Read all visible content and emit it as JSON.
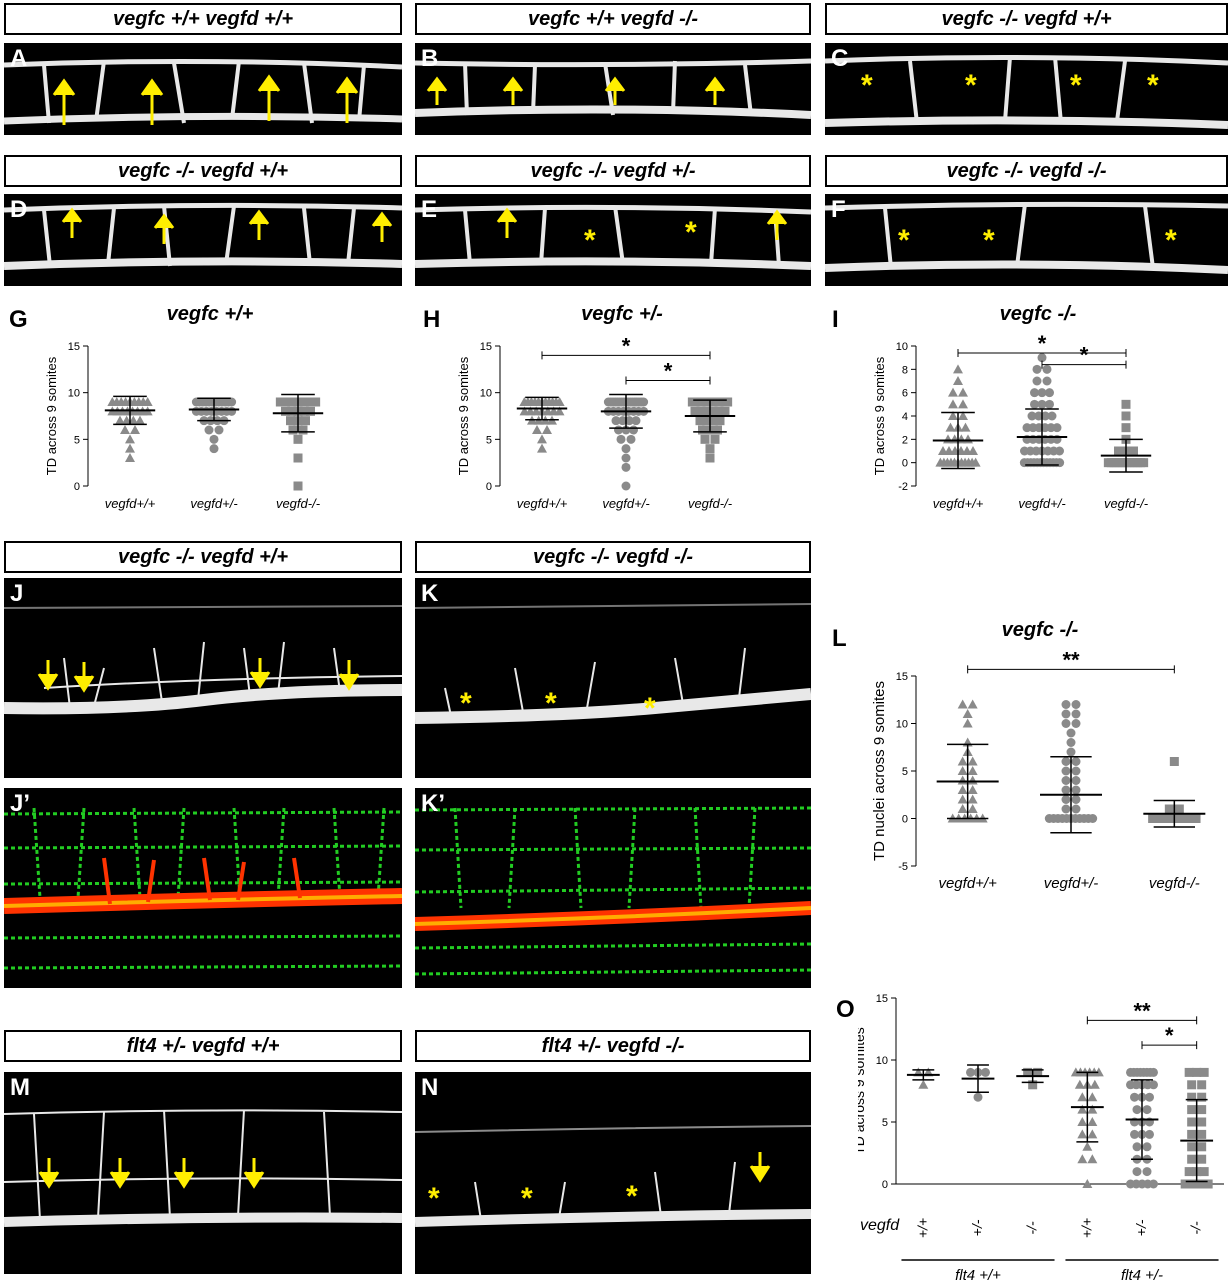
{
  "row1_headers": [
    "vegfc +/+ vegfd +/+",
    "vegfc +/+ vegfd -/-",
    "vegfc -/-  vegfd +/+"
  ],
  "row2_headers": [
    "vegfc -/- vegfd +/+",
    "vegfc -/- vegfd +/-",
    "vegfc -/-  vegfd -/-"
  ],
  "row3_headers": [
    "vegfc -/- vegfd +/+",
    "vegfc -/-  vegfd -/-"
  ],
  "row4_headers": [
    "flt4 +/- vegfd +/+",
    "flt4 +/- vegfd -/-"
  ],
  "panel_letters": {
    "A": "A",
    "B": "B",
    "C": "C",
    "D": "D",
    "E": "E",
    "F": "F",
    "G": "G",
    "H": "H",
    "I": "I",
    "J": "J",
    "Jp": "J’",
    "K": "K",
    "Kp": "K’",
    "L": "L",
    "M": "M",
    "N": "N",
    "O": "O"
  },
  "marker_colors": {
    "arrow": "#ffee00",
    "asterisk": "#ffee00",
    "vessel_green": "#22cc22",
    "vessel_red": "#ff3300"
  },
  "chart_data": [
    {
      "id": "G",
      "type": "scatter",
      "title": "vegfc +/+",
      "ylabel": "TD across 9 somites",
      "ylim": [
        0,
        15
      ],
      "yticks": [
        0,
        5,
        10,
        15
      ],
      "categories": [
        "vegfd+/+",
        "vegfd+/-",
        "vegfd-/-"
      ],
      "markers": [
        "triangle",
        "circle",
        "square"
      ],
      "series": [
        {
          "mean": 8.1,
          "sd": 1.5,
          "values": [
            9,
            9,
            9,
            9,
            9,
            9,
            9,
            9,
            9,
            8,
            8,
            8,
            8,
            8,
            8,
            8,
            8,
            7,
            7,
            7,
            7,
            6,
            6,
            5,
            4,
            3
          ]
        },
        {
          "mean": 8.2,
          "sd": 1.2,
          "values": [
            9,
            9,
            9,
            9,
            9,
            9,
            9,
            9,
            9,
            9,
            9,
            9,
            8,
            8,
            8,
            8,
            8,
            8,
            8,
            8,
            7,
            7,
            7,
            7,
            6,
            6,
            5,
            4
          ]
        },
        {
          "mean": 7.8,
          "sd": 2.0,
          "values": [
            9,
            9,
            9,
            9,
            9,
            9,
            9,
            9,
            9,
            9,
            8,
            8,
            8,
            8,
            8,
            7,
            7,
            7,
            6,
            6,
            5,
            3,
            0
          ]
        }
      ],
      "significance": []
    },
    {
      "id": "H",
      "type": "scatter",
      "title": "vegfc +/-",
      "ylabel": "TD across 9 somites",
      "ylim": [
        0,
        15
      ],
      "yticks": [
        0,
        5,
        10,
        15
      ],
      "categories": [
        "vegfd+/+",
        "vegfd+/-",
        "vegfd-/-"
      ],
      "markers": [
        "triangle",
        "circle",
        "square"
      ],
      "series": [
        {
          "mean": 8.3,
          "sd": 1.2,
          "values": [
            9,
            9,
            9,
            9,
            9,
            9,
            9,
            9,
            9,
            9,
            9,
            8,
            8,
            8,
            8,
            8,
            8,
            8,
            7,
            7,
            7,
            7,
            6,
            6,
            5,
            4
          ]
        },
        {
          "mean": 8.0,
          "sd": 1.8,
          "values": [
            9,
            9,
            9,
            9,
            9,
            9,
            9,
            9,
            9,
            9,
            9,
            9,
            9,
            9,
            9,
            9,
            9,
            9,
            9,
            9,
            8,
            8,
            8,
            8,
            8,
            8,
            8,
            8,
            7,
            7,
            7,
            7,
            6,
            6,
            6,
            5,
            5,
            4,
            3,
            2,
            0
          ]
        },
        {
          "mean": 7.5,
          "sd": 1.7,
          "values": [
            9,
            9,
            9,
            9,
            9,
            9,
            9,
            9,
            9,
            9,
            9,
            9,
            8,
            8,
            8,
            8,
            8,
            8,
            7,
            7,
            7,
            7,
            6,
            6,
            6,
            5,
            5,
            4,
            3
          ]
        }
      ],
      "significance": [
        {
          "from": 0,
          "to": 2,
          "y": 14,
          "label": "*"
        },
        {
          "from": 1,
          "to": 2,
          "y": 11.3,
          "label": "*"
        }
      ]
    },
    {
      "id": "I",
      "type": "scatter",
      "title": "vegfc -/-",
      "ylabel": "TD across 9 somites",
      "ylim": [
        -2,
        10
      ],
      "yticks": [
        -2,
        0,
        2,
        4,
        6,
        8,
        10
      ],
      "categories": [
        "vegfd+/+",
        "vegfd+/-",
        "vegfd-/-"
      ],
      "markers": [
        "triangle",
        "circle",
        "square"
      ],
      "series": [
        {
          "mean": 1.9,
          "sd": 2.4,
          "values": [
            8,
            7,
            6,
            6,
            5,
            5,
            4,
            4,
            3,
            3,
            3,
            2,
            2,
            2,
            2,
            1,
            1,
            1,
            1,
            1,
            1,
            0,
            0,
            0,
            0,
            0,
            0,
            0,
            0,
            0,
            0,
            0
          ]
        },
        {
          "mean": 2.2,
          "sd": 2.4,
          "values": [
            9,
            8,
            8,
            7,
            7,
            6,
            6,
            6,
            5,
            5,
            5,
            4,
            4,
            4,
            4,
            3,
            3,
            3,
            3,
            3,
            3,
            2,
            2,
            2,
            2,
            2,
            2,
            1,
            1,
            1,
            1,
            1,
            1,
            1,
            0,
            0,
            0,
            0,
            0,
            0,
            0,
            0,
            0,
            0,
            0,
            0
          ]
        },
        {
          "mean": 0.6,
          "sd": 1.4,
          "values": [
            5,
            4,
            3,
            2,
            1,
            1,
            1,
            0,
            0,
            0,
            0,
            0,
            0,
            0,
            0,
            0,
            0,
            0,
            0,
            0
          ]
        }
      ],
      "significance": [
        {
          "from": 0,
          "to": 2,
          "y": 9.4,
          "label": "*"
        },
        {
          "from": 1,
          "to": 2,
          "y": 8.4,
          "label": "*"
        }
      ]
    },
    {
      "id": "L",
      "type": "scatter",
      "title": "vegfc -/-",
      "ylabel": "TD  nuclei across 9 somites",
      "ylim": [
        -5,
        15
      ],
      "yticks": [
        -5,
        0,
        5,
        10,
        15
      ],
      "categories": [
        "vegfd+/+",
        "vegfd+/-",
        "vegfd-/-"
      ],
      "markers": [
        "triangle",
        "circle",
        "square"
      ],
      "series": [
        {
          "mean": 3.9,
          "sd": 3.9,
          "values": [
            12,
            12,
            11,
            10,
            8,
            7,
            6,
            6,
            5,
            5,
            4,
            4,
            3,
            3,
            2,
            2,
            1,
            1,
            0,
            0,
            0,
            0,
            0,
            0
          ]
        },
        {
          "mean": 2.5,
          "sd": 4.0,
          "values": [
            12,
            12,
            11,
            11,
            10,
            10,
            9,
            8,
            7,
            6,
            6,
            5,
            5,
            4,
            4,
            3,
            3,
            2,
            2,
            1,
            1,
            0,
            0,
            0,
            0,
            0,
            0,
            0,
            0,
            0,
            0,
            0
          ]
        },
        {
          "mean": 0.5,
          "sd": 1.4,
          "values": [
            6,
            1,
            1,
            0,
            0,
            0,
            0,
            0,
            0,
            0,
            0,
            0,
            0,
            0,
            0,
            0
          ]
        }
      ],
      "significance": [
        {
          "from": 0,
          "to": 2,
          "y": 15.7,
          "label": "**"
        }
      ]
    },
    {
      "id": "O",
      "type": "scatter",
      "ylabel": "TD  across 9 somites",
      "ylim": [
        0,
        15
      ],
      "yticks": [
        0,
        5,
        10,
        15
      ],
      "row_label": "vegfd",
      "categories": [
        "+/+",
        "+/-",
        "-/-",
        "+/+",
        "+/-",
        "-/-"
      ],
      "groups": [
        {
          "label": "flt4 +/+",
          "from": 0,
          "to": 2
        },
        {
          "label": "flt4 +/-",
          "from": 3,
          "to": 5
        }
      ],
      "markers": [
        "triangle",
        "circle",
        "square",
        "triangle",
        "circle",
        "square"
      ],
      "series": [
        {
          "mean": 8.8,
          "sd": 0.4,
          "values": [
            9,
            9,
            8
          ]
        },
        {
          "mean": 8.5,
          "sd": 1.1,
          "values": [
            9,
            9,
            9,
            7
          ]
        },
        {
          "mean": 8.7,
          "sd": 0.5,
          "values": [
            9,
            9,
            8
          ]
        },
        {
          "mean": 6.2,
          "sd": 2.8,
          "values": [
            9,
            9,
            9,
            9,
            9,
            9,
            8,
            8,
            8,
            7,
            7,
            6,
            6,
            5,
            5,
            4,
            4,
            3,
            2,
            2,
            0
          ]
        },
        {
          "mean": 5.2,
          "sd": 3.2,
          "values": [
            9,
            9,
            9,
            9,
            9,
            9,
            9,
            9,
            8,
            8,
            8,
            8,
            8,
            7,
            7,
            7,
            6,
            6,
            5,
            5,
            5,
            4,
            4,
            4,
            3,
            3,
            2,
            2,
            1,
            1,
            0,
            0,
            0,
            0,
            0
          ]
        },
        {
          "mean": 3.5,
          "sd": 3.3,
          "values": [
            9,
            9,
            9,
            8,
            8,
            7,
            7,
            6,
            6,
            5,
            5,
            4,
            4,
            3,
            3,
            2,
            2,
            1,
            1,
            1,
            0,
            0,
            0,
            0,
            0
          ]
        }
      ],
      "significance": [
        {
          "from": 3,
          "to": 5,
          "y": 13.2,
          "label": "**"
        },
        {
          "from": 4,
          "to": 5,
          "y": 11.2,
          "label": "*"
        }
      ]
    }
  ]
}
